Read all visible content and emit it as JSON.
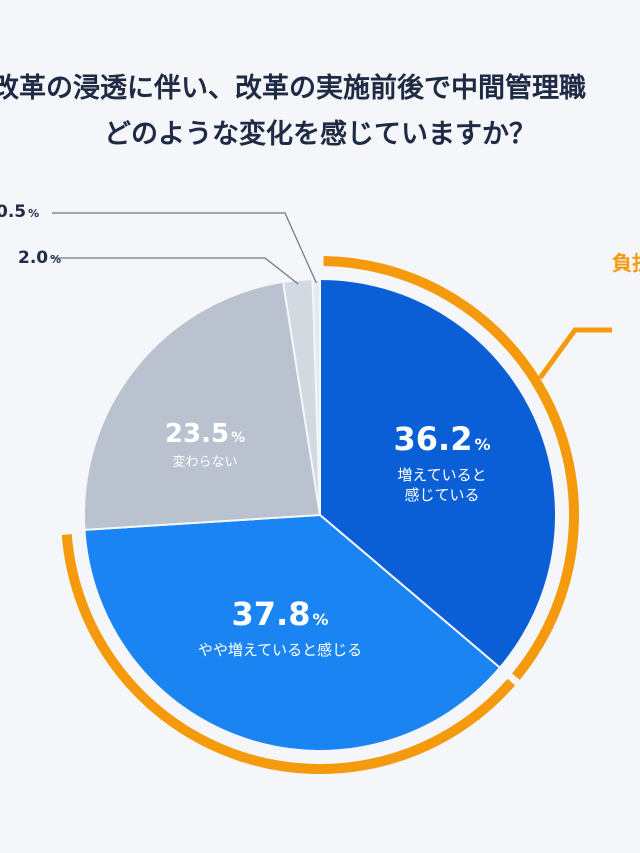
{
  "title_lines": [
    "改革の浸透に伴い、改革の実施前後で中間管理職",
    "どのような変化を感じていますか？"
  ],
  "highlight_label": "負担",
  "percent_sign": "%",
  "colors": {
    "increased": "#0a5fd6",
    "slightly_increased": "#1a84f2",
    "unchanged": "#b9c2ce",
    "slightly_decreased": "#d3d9e1",
    "decreased": "#e6eaf0",
    "highlight": "#f59a0c",
    "text_dark": "#1f2a44"
  },
  "chart_data": {
    "type": "pie",
    "title": "改革の浸透に伴い、改革の実施前後で中間管理職 どのような変化を感じていますか？",
    "slices": [
      {
        "value": 36.2,
        "label": "増えていると\n感じている",
        "key": "increased"
      },
      {
        "value": 37.8,
        "label": "やや増えていると感じる",
        "key": "slightly_increased"
      },
      {
        "value": 23.5,
        "label": "変わらない",
        "key": "unchanged"
      },
      {
        "value": 2.0,
        "label": "",
        "key": "slightly_decreased"
      },
      {
        "value": 0.5,
        "label": "",
        "key": "decreased"
      }
    ],
    "highlighted_slices": [
      "increased",
      "slightly_increased"
    ],
    "external_labels": [
      {
        "value_text": "0.5",
        "prefix": "0",
        "slice": "decreased"
      },
      {
        "value_text": "2.0",
        "prefix": "、",
        "slice": "slightly_decreased"
      }
    ]
  }
}
